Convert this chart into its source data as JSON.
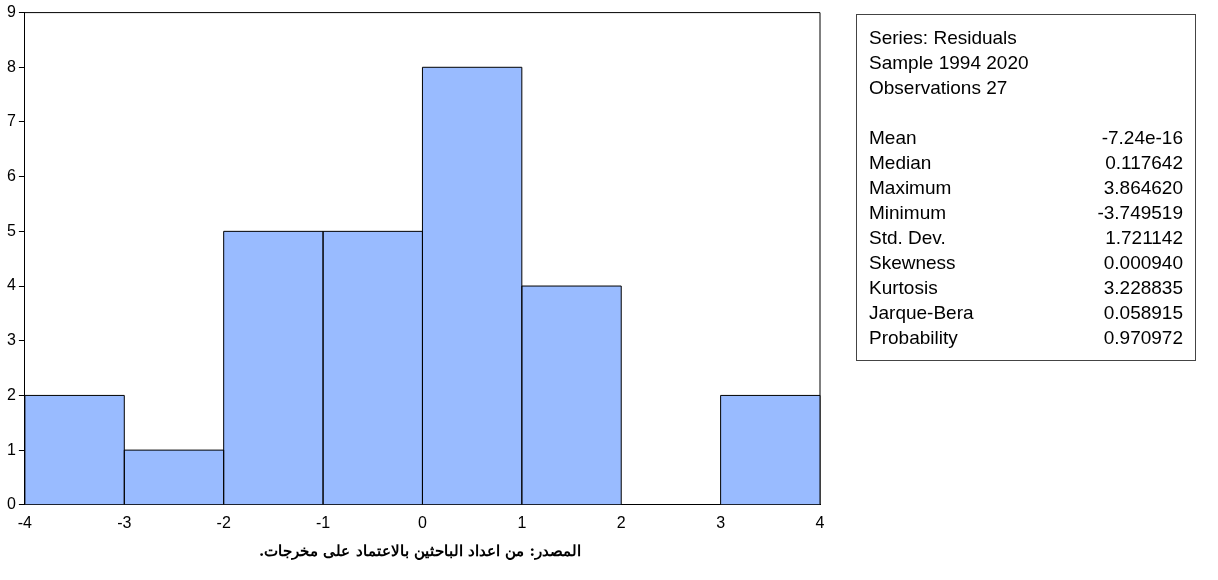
{
  "chart_data": {
    "type": "histogram",
    "bins": [
      -4,
      -3,
      -2,
      -1,
      0,
      1,
      2,
      3,
      4
    ],
    "values": [
      2,
      1,
      5,
      5,
      8,
      4,
      0,
      2
    ],
    "color": "#99bbff",
    "xlim": [
      -4,
      4
    ],
    "xticks": [
      -4,
      -3,
      -2,
      -1,
      0,
      1,
      2,
      3,
      4
    ],
    "ylim": [
      0,
      9
    ],
    "yticks": [
      0,
      1,
      2,
      3,
      4,
      5,
      6,
      7,
      8,
      9
    ],
    "grid": false,
    "legend": false,
    "annotations": [
      "Series: Residuals",
      "Sample 1994 2020",
      "Observations 27",
      "Mean\t-7.24e-16",
      "Median\t0.117642",
      "Maximum\t3.864620",
      "Minimum\t-3.749519",
      "Std. Dev.\t1.721142",
      "Skewness\t0.000940",
      "Kurtosis\t3.228835",
      "Jarque-Bera\t0.058915",
      "Probability\t0.970972",
      "المصدر: من اعداد الباحثين بالاعتماد على مخرجات."
    ]
  }
}
